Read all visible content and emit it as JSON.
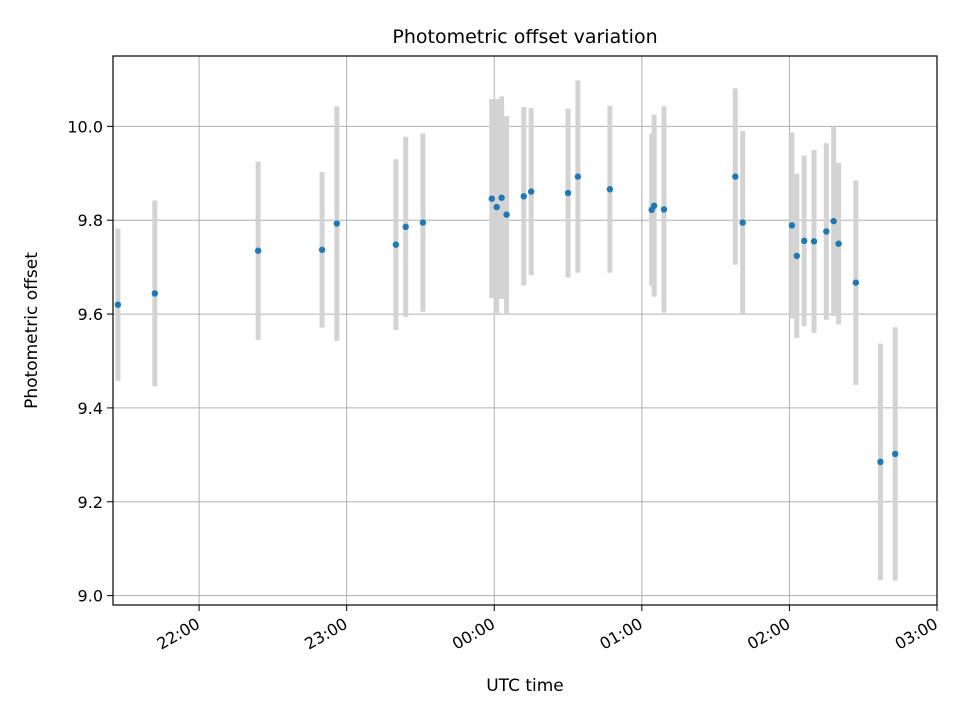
{
  "chart_data": {
    "type": "scatter",
    "title": "Photometric offset variation",
    "xlabel": "UTC time",
    "ylabel": "Photometric offset",
    "x_axis": "time",
    "xlim": [
      "21:25",
      "03:00"
    ],
    "ylim": [
      8.98,
      10.15
    ],
    "xticks": [
      "22:00",
      "23:00",
      "00:00",
      "01:00",
      "02:00",
      "03:00"
    ],
    "yticks": [
      "9.0",
      "9.2",
      "9.4",
      "9.6",
      "9.8",
      "10.0"
    ],
    "grid": true,
    "colors": {
      "point": "#1f77b4",
      "errorbar": "#d3d3d3",
      "grid": "#b0b0b0",
      "axis": "#000000"
    },
    "points": [
      {
        "x": "21:27",
        "y": 9.62,
        "err": 0.162
      },
      {
        "x": "21:42",
        "y": 9.644,
        "err": 0.198
      },
      {
        "x": "22:24",
        "y": 9.735,
        "err": 0.19
      },
      {
        "x": "22:50",
        "y": 9.737,
        "err": 0.166
      },
      {
        "x": "22:56",
        "y": 9.793,
        "err": 0.25
      },
      {
        "x": "23:20",
        "y": 9.748,
        "err": 0.182
      },
      {
        "x": "23:24",
        "y": 9.786,
        "err": 0.192
      },
      {
        "x": "23:31",
        "y": 9.795,
        "err": 0.19
      },
      {
        "x": "23:59",
        "y": 9.846,
        "err": 0.212
      },
      {
        "x": "00:01",
        "y": 9.828,
        "err": 0.23
      },
      {
        "x": "00:03",
        "y": 9.848,
        "err": 0.216
      },
      {
        "x": "00:05",
        "y": 9.812,
        "err": 0.21
      },
      {
        "x": "00:12",
        "y": 9.851,
        "err": 0.19
      },
      {
        "x": "00:15",
        "y": 9.861,
        "err": 0.178
      },
      {
        "x": "00:30",
        "y": 9.858,
        "err": 0.18
      },
      {
        "x": "00:34",
        "y": 9.893,
        "err": 0.205
      },
      {
        "x": "00:47",
        "y": 9.866,
        "err": 0.178
      },
      {
        "x": "01:04",
        "y": 9.822,
        "err": 0.162
      },
      {
        "x": "01:05",
        "y": 9.831,
        "err": 0.194
      },
      {
        "x": "01:09",
        "y": 9.823,
        "err": 0.22
      },
      {
        "x": "01:38",
        "y": 9.893,
        "err": 0.188
      },
      {
        "x": "01:41",
        "y": 9.795,
        "err": 0.195
      },
      {
        "x": "02:01",
        "y": 9.789,
        "err": 0.198
      },
      {
        "x": "02:03",
        "y": 9.724,
        "err": 0.175
      },
      {
        "x": "02:06",
        "y": 9.756,
        "err": 0.182
      },
      {
        "x": "02:10",
        "y": 9.755,
        "err": 0.195
      },
      {
        "x": "02:15",
        "y": 9.776,
        "err": 0.188
      },
      {
        "x": "02:18",
        "y": 9.798,
        "err": 0.202
      },
      {
        "x": "02:20",
        "y": 9.75,
        "err": 0.172
      },
      {
        "x": "02:27",
        "y": 9.667,
        "err": 0.218
      },
      {
        "x": "02:37",
        "y": 9.285,
        "err": 0.252
      },
      {
        "x": "02:43",
        "y": 9.302,
        "err": 0.27
      }
    ]
  }
}
